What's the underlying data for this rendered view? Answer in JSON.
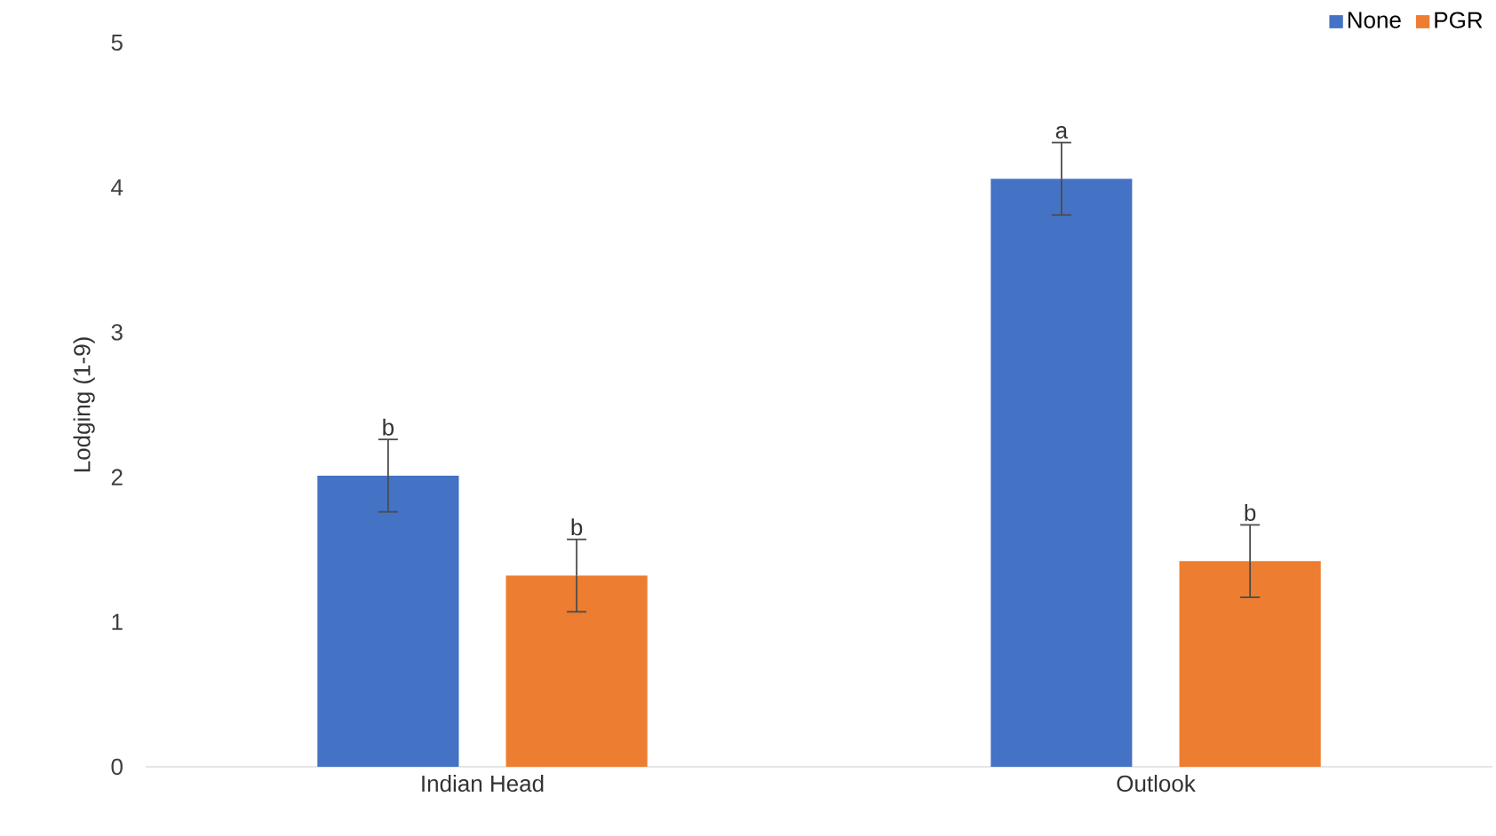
{
  "chart_data": {
    "type": "bar",
    "ylabel": "Lodging (1-9)",
    "categories": [
      "Indian Head",
      "Outlook"
    ],
    "ylim": [
      0,
      5
    ],
    "yticks": [
      0,
      1,
      2,
      3,
      4,
      5
    ],
    "legend": "top right",
    "series": [
      {
        "name": "None",
        "color": "#4472c4",
        "values": [
          2.01,
          4.06
        ],
        "errors": [
          0.25,
          0.25
        ],
        "value_labels": [
          "b",
          "a"
        ]
      },
      {
        "name": "PGR",
        "color": "#ed7d31",
        "values": [
          1.32,
          1.42
        ],
        "errors": [
          0.25,
          0.25
        ],
        "value_labels": [
          "b",
          "b"
        ]
      }
    ]
  }
}
